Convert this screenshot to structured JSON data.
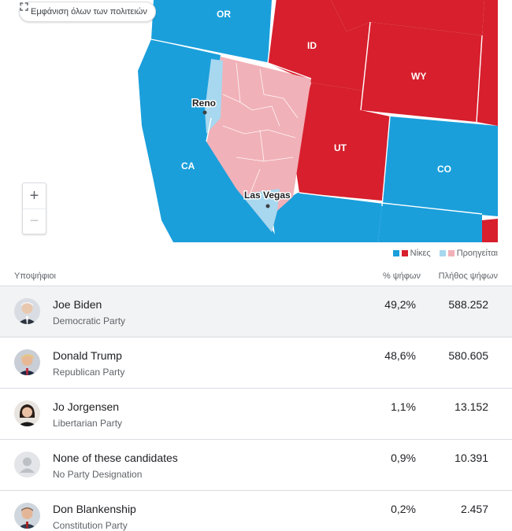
{
  "map": {
    "show_all_label": "Εμφάνιση όλων των πολιτειών",
    "show_all_icon": "expand-icon",
    "zoom_in_label": "+",
    "zoom_out_label": "−",
    "states": {
      "or": "OR",
      "id": "ID",
      "wy": "WY",
      "ca": "CA",
      "ut": "UT",
      "co": "CO"
    },
    "cities": {
      "reno": "Reno",
      "las_vegas": "Las Vegas"
    },
    "colors": {
      "dem_win": "#1a9fdb",
      "rep_win": "#d71f2d",
      "dem_lead": "#a8d8ef",
      "rep_lead": "#f1b1b8"
    }
  },
  "legend": {
    "wins_label": "Νίκες",
    "leading_label": "Προηγείται"
  },
  "table": {
    "headers": {
      "candidates": "Υποψήφιοι",
      "vote_pct": "% ψήφων",
      "vote_count": "Πλήθος ψήφων"
    },
    "rows": [
      {
        "name": "Joe Biden",
        "party": "Democratic Party",
        "pct": "49,2%",
        "votes": "588.252"
      },
      {
        "name": "Donald Trump",
        "party": "Republican Party",
        "pct": "48,6%",
        "votes": "580.605"
      },
      {
        "name": "Jo Jorgensen",
        "party": "Libertarian Party",
        "pct": "1,1%",
        "votes": "13.152"
      },
      {
        "name": "None of these candidates",
        "party": "No Party Designation",
        "pct": "0,9%",
        "votes": "10.391"
      },
      {
        "name": "Don Blankenship",
        "party": "Constitution Party",
        "pct": "0,2%",
        "votes": "2.457"
      }
    ]
  }
}
